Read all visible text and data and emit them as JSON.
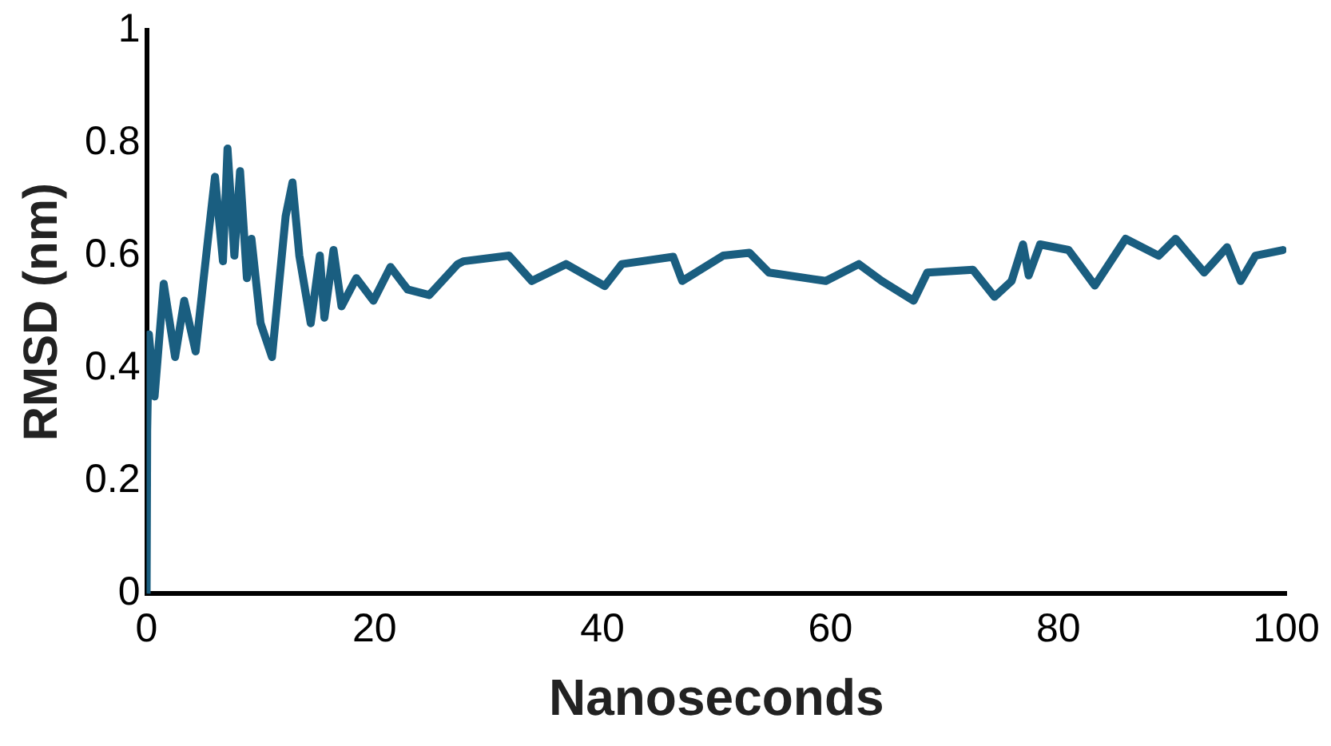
{
  "chart_data": {
    "type": "line",
    "xlabel": "Nanoseconds",
    "ylabel": "RMSD (nm)",
    "xlim": [
      0,
      100
    ],
    "xticks": [
      0,
      20,
      40,
      60,
      80,
      100
    ],
    "ylim": [
      0,
      1
    ],
    "yticks": [
      0,
      0.2,
      0.4,
      0.6,
      0.8,
      1
    ],
    "grid": false,
    "legend": false,
    "marker": "none",
    "line_style": "solid",
    "series": [
      {
        "color": "#1a5e80",
        "x": [
          0,
          0.05,
          0.2,
          0.7,
          1.5,
          2.5,
          3.3,
          4.3,
          5.5,
          6,
          6.7,
          7.1,
          7.7,
          8.2,
          8.8,
          9.2,
          10,
          11,
          12.2,
          12.8,
          13.4,
          14.4,
          15.2,
          15.6,
          16.4,
          17.1,
          18.4,
          19.9,
          21.4,
          22.9,
          24.8,
          27.3,
          27.8,
          31.8,
          33.8,
          36.8,
          40.2,
          41.7,
          46.2,
          47,
          50.6,
          52.9,
          54.6,
          59.6,
          62.5,
          64.5,
          67.3,
          68.5,
          72.5,
          74.4,
          75.9,
          76.9,
          77.4,
          78.4,
          80.9,
          83.2,
          85.9,
          88.8,
          90.3,
          92.8,
          94.8,
          96,
          97.3,
          99.7
        ],
        "values": [
          0,
          0.29,
          0.46,
          0.35,
          0.55,
          0.42,
          0.52,
          0.43,
          0.65,
          0.74,
          0.59,
          0.79,
          0.6,
          0.75,
          0.56,
          0.63,
          0.48,
          0.42,
          0.67,
          0.73,
          0.6,
          0.48,
          0.6,
          0.49,
          0.61,
          0.51,
          0.56,
          0.52,
          0.58,
          0.54,
          0.53,
          0.585,
          0.59,
          0.6,
          0.555,
          0.585,
          0.546,
          0.585,
          0.598,
          0.555,
          0.6,
          0.605,
          0.57,
          0.555,
          0.585,
          0.555,
          0.52,
          0.57,
          0.575,
          0.527,
          0.555,
          0.62,
          0.565,
          0.62,
          0.61,
          0.547,
          0.63,
          0.6,
          0.63,
          0.57,
          0.615,
          0.555,
          0.6,
          0.61
        ]
      }
    ]
  }
}
